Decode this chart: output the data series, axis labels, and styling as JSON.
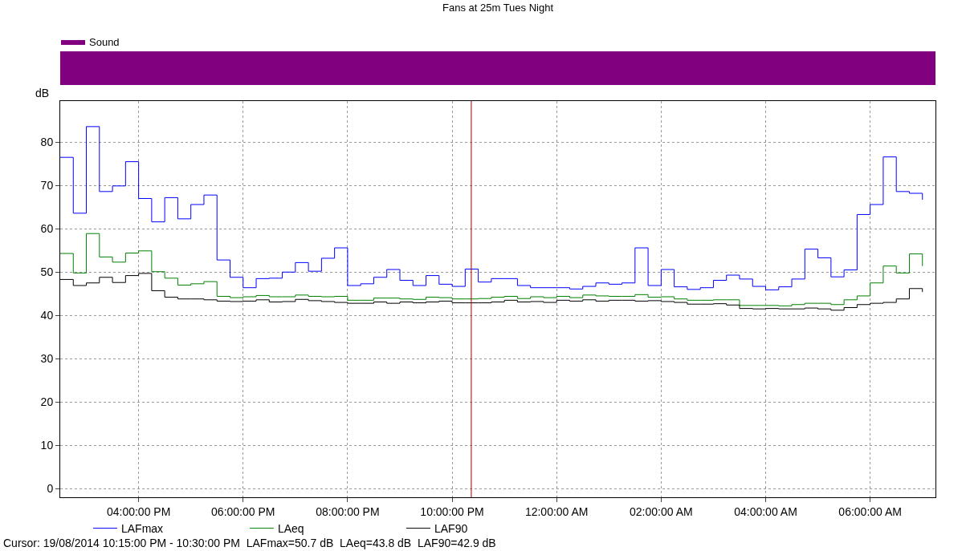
{
  "chart_data": [
    {
      "type": "other",
      "series": [
        {
          "name": "Sound",
          "color": "#800080"
        }
      ]
    },
    {
      "type": "step",
      "title": "Fans at 25m Tues Night",
      "ylabel": "dB",
      "x": [
        "2014-08-19T14:30",
        "2014-08-19T14:45",
        "2014-08-19T15:00",
        "2014-08-19T15:15",
        "2014-08-19T15:30",
        "2014-08-19T15:45",
        "2014-08-19T16:00",
        "2014-08-19T16:15",
        "2014-08-19T16:30",
        "2014-08-19T16:45",
        "2014-08-19T17:00",
        "2014-08-19T17:15",
        "2014-08-19T17:30",
        "2014-08-19T17:45",
        "2014-08-19T18:00",
        "2014-08-19T18:15",
        "2014-08-19T18:30",
        "2014-08-19T18:45",
        "2014-08-19T19:00",
        "2014-08-19T19:15",
        "2014-08-19T19:30",
        "2014-08-19T19:45",
        "2014-08-19T20:00",
        "2014-08-19T20:15",
        "2014-08-19T20:30",
        "2014-08-19T20:45",
        "2014-08-19T21:00",
        "2014-08-19T21:15",
        "2014-08-19T21:30",
        "2014-08-19T21:45",
        "2014-08-19T22:00",
        "2014-08-19T22:15",
        "2014-08-19T22:30",
        "2014-08-19T22:45",
        "2014-08-19T23:00",
        "2014-08-19T23:15",
        "2014-08-19T23:30",
        "2014-08-19T23:45",
        "2014-08-20T00:00",
        "2014-08-20T00:15",
        "2014-08-20T00:30",
        "2014-08-20T00:45",
        "2014-08-20T01:00",
        "2014-08-20T01:15",
        "2014-08-20T01:30",
        "2014-08-20T01:45",
        "2014-08-20T02:00",
        "2014-08-20T02:15",
        "2014-08-20T02:30",
        "2014-08-20T02:45",
        "2014-08-20T03:00",
        "2014-08-20T03:15",
        "2014-08-20T03:30",
        "2014-08-20T03:45",
        "2014-08-20T04:00",
        "2014-08-20T04:15",
        "2014-08-20T04:30",
        "2014-08-20T04:45",
        "2014-08-20T05:00",
        "2014-08-20T05:15",
        "2014-08-20T05:30",
        "2014-08-20T05:45",
        "2014-08-20T06:00",
        "2014-08-20T06:15",
        "2014-08-20T06:30",
        "2014-08-20T06:45",
        "2014-08-20T07:00"
      ],
      "series": [
        {
          "name": "LAFmax",
          "color": "#0000ff",
          "values": [
            76.5,
            63.6,
            83.6,
            68.6,
            69.9,
            75.5,
            67.0,
            61.6,
            67.2,
            62.3,
            65.6,
            67.8,
            52.8,
            48.8,
            46.4,
            48.5,
            48.6,
            50.0,
            52.2,
            50.2,
            53.2,
            55.6,
            46.9,
            47.3,
            48.8,
            50.6,
            48.1,
            46.9,
            49.2,
            47.2,
            46.7,
            50.7,
            47.7,
            48.5,
            48.5,
            46.9,
            46.4,
            46.4,
            46.4,
            46.1,
            46.7,
            47.5,
            47.2,
            47.5,
            55.6,
            46.9,
            50.6,
            46.6,
            46.0,
            46.4,
            48.1,
            49.3,
            48.4,
            46.7,
            45.9,
            46.6,
            48.4,
            55.3,
            53.3,
            48.9,
            50.5,
            63.3,
            65.6,
            76.6,
            68.6,
            68.2,
            66.7
          ]
        },
        {
          "name": "LAeq",
          "color": "#008000",
          "values": [
            54.3,
            49.8,
            58.9,
            53.5,
            52.3,
            54.4,
            54.9,
            50.1,
            48.6,
            47.0,
            47.3,
            47.8,
            44.4,
            44.1,
            44.3,
            44.6,
            44.3,
            44.3,
            44.7,
            44.4,
            44.3,
            44.4,
            43.5,
            43.5,
            44.0,
            44.0,
            43.8,
            43.7,
            44.2,
            44.1,
            43.8,
            43.8,
            43.9,
            44.2,
            44.4,
            43.9,
            44.3,
            44.1,
            44.4,
            44.1,
            44.7,
            44.5,
            44.4,
            44.4,
            44.8,
            44.2,
            44.3,
            43.8,
            43.5,
            43.5,
            43.6,
            43.6,
            42.3,
            42.3,
            42.3,
            42.2,
            42.5,
            42.8,
            42.8,
            42.5,
            43.6,
            44.5,
            47.5,
            51.4,
            49.8,
            54.2,
            51.4
          ]
        },
        {
          "name": "LAF90",
          "color": "#000000",
          "values": [
            48.3,
            46.9,
            47.5,
            48.8,
            47.6,
            49.2,
            49.7,
            45.7,
            44.2,
            43.8,
            43.8,
            43.6,
            43.3,
            43.2,
            43.3,
            43.6,
            43.1,
            43.2,
            43.7,
            43.4,
            43.2,
            43.0,
            42.8,
            42.8,
            43.1,
            42.8,
            43.1,
            42.9,
            43.1,
            43.3,
            42.9,
            42.9,
            42.9,
            43.1,
            43.5,
            43.1,
            43.2,
            43.0,
            43.5,
            43.3,
            43.6,
            43.3,
            43.5,
            43.5,
            43.3,
            43.4,
            43.2,
            43.0,
            42.6,
            42.6,
            42.7,
            42.4,
            41.6,
            41.5,
            41.6,
            41.5,
            41.5,
            41.7,
            41.5,
            41.2,
            41.8,
            42.5,
            42.8,
            43.0,
            43.8,
            46.2,
            45.4
          ]
        }
      ],
      "xlim": [
        "2014-08-19T14:30",
        "2014-08-20T07:15"
      ],
      "xticks": [
        {
          "value": "2014-08-19T16:00",
          "label": "04:00:00 PM"
        },
        {
          "value": "2014-08-19T18:00",
          "label": "06:00:00 PM"
        },
        {
          "value": "2014-08-19T20:00",
          "label": "08:00:00 PM"
        },
        {
          "value": "2014-08-19T22:00",
          "label": "10:00:00 PM"
        },
        {
          "value": "2014-08-20T00:00",
          "label": "12:00:00 AM"
        },
        {
          "value": "2014-08-20T02:00",
          "label": "02:00:00 AM"
        },
        {
          "value": "2014-08-20T04:00",
          "label": "04:00:00 AM"
        },
        {
          "value": "2014-08-20T06:00",
          "label": "06:00:00 AM"
        }
      ],
      "ylim": [
        -2,
        89.5
      ],
      "yticks": [
        0,
        10,
        20,
        30,
        40,
        50,
        60,
        70,
        80
      ],
      "grid": true,
      "legend": "bottom",
      "ref_lines": [
        {
          "axis": "x",
          "value": "2014-08-19T22:22",
          "color": "#a00000"
        }
      ],
      "annotations": [
        "Cursor: 19/08/2014 10:15:00 PM - 10:30:00 PM  LAFmax=50.7 dB  LAeq=43.8 dB  LAF90=42.9 dB"
      ]
    }
  ]
}
